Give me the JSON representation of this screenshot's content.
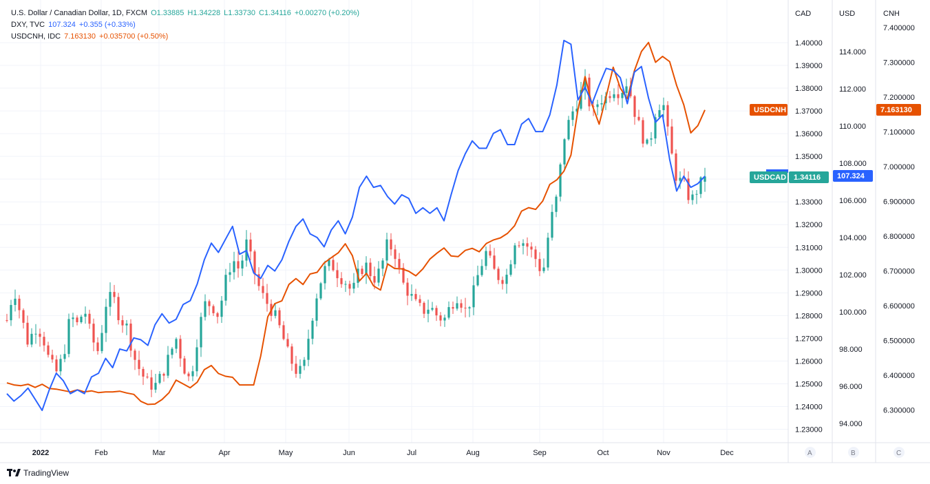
{
  "legend": {
    "line1": {
      "name": "U.S. Dollar / Canadian Dollar, 1D, FXCM",
      "o": "O1.33885",
      "h": "H1.34228",
      "l": "L1.33730",
      "c": "C1.34116",
      "chg": "+0.00270 (+0.20%)"
    },
    "line2": {
      "name": "DXY, TVC",
      "val": "107.324",
      "chg": "+0.355 (+0.33%)"
    },
    "line3": {
      "name": "USDCNH, IDC",
      "val": "7.163130",
      "chg": "+0.035700 (+0.50%)"
    }
  },
  "axes": {
    "cad_head": "CAD",
    "usd_head": "USD",
    "cnh_head": "CNH",
    "cad_ticks": [
      "1.40000",
      "1.39000",
      "1.38000",
      "1.37000",
      "1.36000",
      "1.35000",
      "1.34000",
      "1.33000",
      "1.32000",
      "1.31000",
      "1.30000",
      "1.29000",
      "1.28000",
      "1.27000",
      "1.26000",
      "1.25000",
      "1.24000",
      "1.23000"
    ],
    "usd_ticks": [
      "114.000",
      "112.000",
      "110.000",
      "108.000",
      "106.000",
      "104.000",
      "102.000",
      "100.000",
      "98.000",
      "96.000",
      "94.000"
    ],
    "cnh_ticks": [
      "7.400000",
      "7.300000",
      "7.200000",
      "7.100000",
      "7.000000",
      "6.900000",
      "6.800000",
      "6.700000",
      "6.600000",
      "6.500000",
      "6.400000",
      "6.300000"
    ],
    "months": [
      "2022",
      "Feb",
      "Mar",
      "Apr",
      "May",
      "Jun",
      "Jul",
      "Aug",
      "Sep",
      "Oct",
      "Nov",
      "Dec"
    ],
    "scale_buttons": [
      "A",
      "B",
      "C"
    ]
  },
  "tags": {
    "usdcnh_label": "USDCNH",
    "usdcnh_value": "7.163130",
    "usdcad_label": "USDCAD",
    "usdcad_value": "1.34116",
    "dxy_value": "107.324"
  },
  "footer": {
    "brand": "TradingView"
  },
  "colors": {
    "up": "#26a69a",
    "down": "#ef5350",
    "dxy": "#2962ff",
    "cnh": "#e65100",
    "grid": "#f0f3fa"
  },
  "chart_data": [
    {
      "type": "candlestick",
      "title": "U.S. Dollar / Canadian Dollar, 1D, FXCM",
      "ylabel": "CAD",
      "ylim": [
        1.226,
        1.412
      ],
      "x": [
        "2022-01-01",
        "2022-02-01",
        "2022-03-01",
        "2022-04-01",
        "2022-05-01",
        "2022-06-01",
        "2022-07-01",
        "2022-08-01",
        "2022-09-01",
        "2022-10-01",
        "2022-11-01",
        "2022-11-21"
      ],
      "close_path": [
        1.278,
        1.292,
        1.28,
        1.268,
        1.275,
        1.272,
        1.26,
        1.255,
        1.262,
        1.28,
        1.276,
        1.283,
        1.27,
        1.264,
        1.285,
        1.289,
        1.279,
        1.275,
        1.262,
        1.255,
        1.25,
        1.249,
        1.254,
        1.262,
        1.27,
        1.258,
        1.251,
        1.27,
        1.285,
        1.285,
        1.28,
        1.295,
        1.305,
        1.3,
        1.312,
        1.3,
        1.29,
        1.285,
        1.28,
        1.272,
        1.262,
        1.256,
        1.255,
        1.275,
        1.29,
        1.3,
        1.303,
        1.298,
        1.295,
        1.29,
        1.3,
        1.302,
        1.296,
        1.3,
        1.312,
        1.308,
        1.295,
        1.29,
        1.285,
        1.282,
        1.284,
        1.28,
        1.278,
        1.285,
        1.289,
        1.282,
        1.288,
        1.3,
        1.308,
        1.3,
        1.296,
        1.298,
        1.313,
        1.313,
        1.31,
        1.305,
        1.298,
        1.32,
        1.332,
        1.358,
        1.368,
        1.375,
        1.382,
        1.368,
        1.375,
        1.376,
        1.38,
        1.378,
        1.383,
        1.37,
        1.36,
        1.353,
        1.37,
        1.375,
        1.355,
        1.34,
        1.338,
        1.33,
        1.336,
        1.341
      ],
      "last": {
        "open": 1.33885,
        "high": 1.34228,
        "low": 1.3373,
        "close": 1.34116
      }
    },
    {
      "type": "line",
      "name": "DXY, TVC",
      "ylabel": "USD",
      "ylim": [
        92.8,
        116.5
      ],
      "values": [
        95.6,
        95.2,
        95.5,
        95.9,
        95.3,
        94.7,
        95.8,
        96.7,
        96.3,
        95.6,
        95.8,
        95.6,
        96.5,
        96.7,
        97.5,
        97.0,
        98.0,
        97.9,
        98.6,
        98.5,
        98.2,
        99.3,
        99.9,
        99.4,
        99.6,
        100.4,
        100.6,
        101.5,
        102.8,
        103.7,
        103.2,
        103.9,
        104.6,
        103.1,
        103.3,
        102.1,
        101.8,
        102.5,
        102.2,
        102.8,
        103.8,
        104.6,
        105.0,
        104.2,
        104.0,
        103.5,
        104.4,
        104.9,
        104.2,
        105.1,
        106.7,
        107.3,
        106.7,
        106.8,
        106.2,
        105.8,
        106.3,
        106.1,
        105.3,
        105.6,
        105.3,
        105.6,
        104.9,
        106.3,
        107.6,
        108.5,
        109.2,
        108.8,
        108.8,
        109.6,
        109.8,
        109.0,
        109.0,
        110.1,
        110.4,
        109.7,
        109.7,
        110.6,
        112.2,
        114.6,
        114.4,
        111.4,
        112.1,
        111.2,
        112.2,
        113.1,
        113.0,
        112.6,
        111.2,
        112.9,
        113.2,
        111.5,
        110.2,
        110.6,
        108.2,
        106.5,
        107.3,
        106.7,
        106.9,
        107.3
      ]
    },
    {
      "type": "line",
      "name": "USDCNH, IDC",
      "ylabel": "CNH",
      "ylim": [
        6.21,
        7.46
      ],
      "values": [
        6.378,
        6.372,
        6.37,
        6.374,
        6.365,
        6.374,
        6.362,
        6.36,
        6.356,
        6.352,
        6.358,
        6.352,
        6.355,
        6.35,
        6.352,
        6.352,
        6.354,
        6.349,
        6.345,
        6.325,
        6.316,
        6.317,
        6.33,
        6.35,
        6.386,
        6.375,
        6.364,
        6.38,
        6.416,
        6.428,
        6.405,
        6.397,
        6.394,
        6.372,
        6.372,
        6.372,
        6.455,
        6.568,
        6.606,
        6.614,
        6.661,
        6.678,
        6.661,
        6.691,
        6.696,
        6.723,
        6.738,
        6.752,
        6.778,
        6.744,
        6.671,
        6.693,
        6.657,
        6.645,
        6.72,
        6.707,
        6.706,
        6.699,
        6.686,
        6.706,
        6.734,
        6.751,
        6.766,
        6.743,
        6.741,
        6.759,
        6.765,
        6.755,
        6.779,
        6.789,
        6.795,
        6.808,
        6.83,
        6.872,
        6.882,
        6.877,
        6.901,
        6.949,
        6.962,
        6.987,
        7.033,
        7.164,
        7.259,
        7.178,
        7.122,
        7.202,
        7.286,
        7.226,
        7.195,
        7.276,
        7.331,
        7.357,
        7.3,
        7.317,
        7.302,
        7.233,
        7.178,
        7.097,
        7.118,
        7.163
      ]
    }
  ]
}
